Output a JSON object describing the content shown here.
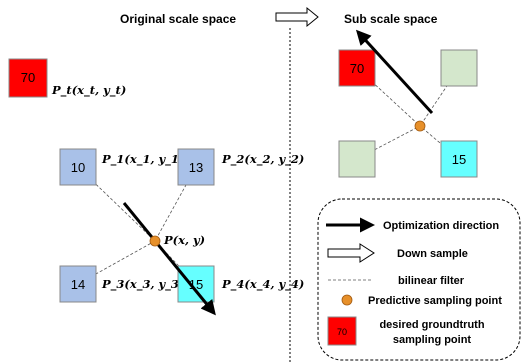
{
  "headers": {
    "original": "Original scale space",
    "sub": "Sub scale space"
  },
  "colors": {
    "red": "#ff0000",
    "blue": "#a9c1e8",
    "cyan": "#66ffff",
    "green": "#d4e7cc",
    "orange": "#e7902a"
  },
  "target": {
    "value": "70",
    "label": "P_t(x_t, y_t)"
  },
  "points": [
    {
      "value": "10",
      "label": "P_1(x_1, y_1)"
    },
    {
      "value": "13",
      "label": "P_2(x_2, y_2)"
    },
    {
      "value": "14",
      "label": "P_3(x_3, y_3)"
    },
    {
      "value": "15",
      "label": "P_4(x_4, y_4)"
    }
  ],
  "sample_point_label": "P(x, y)",
  "sub_space": {
    "red_value": "70",
    "cyan_value": "15"
  },
  "legend": {
    "optimization": "Optimization direction",
    "down_sample": "Down sample",
    "bilinear": "bilinear filter",
    "predictive": "Predictive sampling point",
    "desired_line1": "desired groundtruth",
    "desired_line2": "sampling point",
    "desired_value": "70"
  }
}
